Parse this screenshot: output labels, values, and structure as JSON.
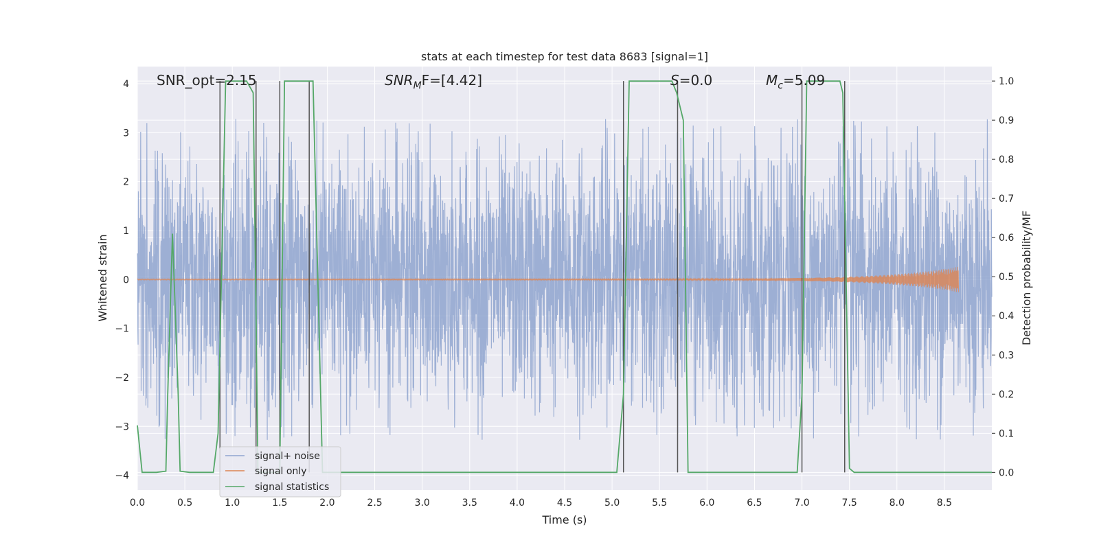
{
  "chart_data": {
    "type": "line",
    "title": "stats at each timestep for test data 8683 [signal=1]",
    "xlabel": "Time (s)",
    "ylabel": "Whitened strain",
    "ylabel_right": "Detection probability/MF",
    "xlim": [
      0,
      9
    ],
    "ylim": [
      -4.3,
      4.35
    ],
    "ylim_right": [
      -0.045,
      1.037
    ],
    "xticks": [
      "0.0",
      "0.5",
      "1.0",
      "1.5",
      "2.0",
      "2.5",
      "3.0",
      "3.5",
      "4.0",
      "4.5",
      "5.0",
      "5.5",
      "6.0",
      "6.5",
      "7.0",
      "7.5",
      "8.0",
      "8.5"
    ],
    "yticks": [
      "−4",
      "−3",
      "−2",
      "−1",
      "0",
      "1",
      "2",
      "3",
      "4"
    ],
    "yticks_right": [
      "0.0",
      "0.1",
      "0.2",
      "0.3",
      "0.4",
      "0.5",
      "0.6",
      "0.7",
      "0.8",
      "0.9",
      "1.0"
    ],
    "grid": true,
    "legend_position": "lower-left",
    "annotations": {
      "snr_opt": "SNR_opt=2.15",
      "snr_mf_base": "SNR",
      "snr_mf_sub": "M",
      "snr_mf_rest": "F=[4.42]",
      "s_label": "S",
      "s_rest": "=0.0",
      "mc_base": "M",
      "mc_sub": "c",
      "mc_rest": "=5.09"
    },
    "series": [
      {
        "name": "signal+ noise",
        "color": "#8fa5cf",
        "amplitude_envelope": 3.3
      },
      {
        "name": "signal only",
        "color": "#dd8452",
        "chirp_end_time": 8.65,
        "chirp_peak_amplitude": 0.25
      },
      {
        "name": "signal statistics",
        "color": "#55a868",
        "axis": "right",
        "x": [
          0.0,
          0.05,
          0.1,
          0.2,
          0.3,
          0.32,
          0.37,
          0.43,
          0.45,
          0.55,
          0.65,
          0.8,
          0.85,
          0.93,
          0.95,
          1.0,
          1.1,
          1.15,
          1.22,
          1.25,
          1.27,
          1.32,
          1.37,
          1.5,
          1.55,
          1.62,
          1.8,
          1.85,
          1.93,
          1.95,
          2.0,
          5.0,
          5.05,
          5.12,
          5.18,
          5.22,
          5.5,
          5.63,
          5.68,
          5.75,
          5.8,
          5.85,
          6.0,
          6.95,
          7.0,
          7.05,
          7.1,
          7.4,
          7.43,
          7.5,
          7.55,
          8.0,
          9.0
        ],
        "y": [
          0.12,
          0.0,
          0.0,
          0.0,
          0.003,
          0.2,
          0.61,
          0.2,
          0.003,
          0.0,
          0.0,
          0.0,
          0.1,
          1.0,
          1.0,
          1.0,
          1.0,
          1.0,
          0.97,
          0.4,
          0.0,
          0.0,
          0.0,
          0.0,
          1.0,
          1.0,
          1.0,
          1.0,
          0.2,
          0.0,
          0.0,
          0.0,
          0.0,
          0.2,
          1.0,
          1.0,
          1.0,
          1.0,
          0.97,
          0.9,
          0.0,
          0.0,
          0.0,
          0.0,
          0.2,
          1.0,
          1.0,
          1.0,
          0.97,
          0.01,
          0.0,
          0.0,
          0.0
        ]
      }
    ],
    "vertical_lines": [
      0.87,
      1.25,
      1.5,
      1.81,
      5.12,
      5.69,
      7.0,
      7.45
    ]
  }
}
